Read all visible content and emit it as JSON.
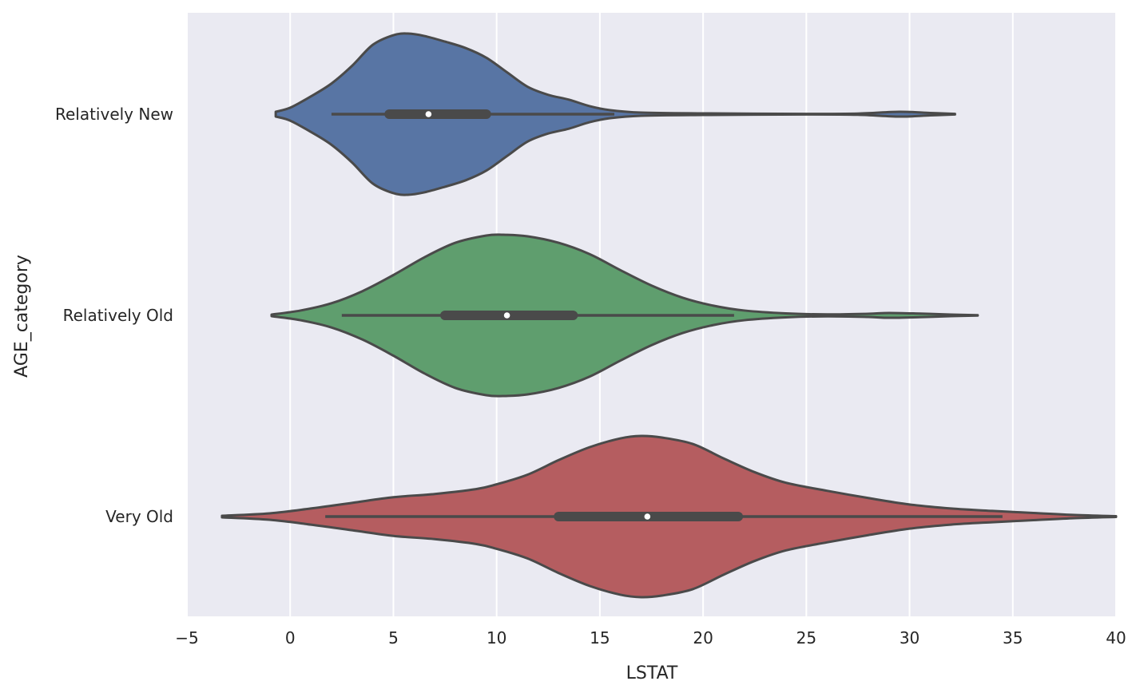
{
  "chart_data": {
    "type": "violin",
    "orientation": "horizontal",
    "xlabel": "LSTAT",
    "ylabel": "AGE_category",
    "xlim": [
      -5,
      40
    ],
    "xticks": [
      -5,
      0,
      5,
      10,
      15,
      20,
      25,
      30,
      35,
      40
    ],
    "xtick_labels": [
      "−5",
      "0",
      "5",
      "10",
      "15",
      "20",
      "25",
      "30",
      "35",
      "40"
    ],
    "grid": true,
    "background_color": "#eaeaf2",
    "grid_color": "#ffffff",
    "outline_color": "#4a4a4a",
    "categories": [
      "Relatively New",
      "Relatively Old",
      "Very Old"
    ],
    "series": [
      {
        "category": "Relatively New",
        "color": "#5875a4",
        "min": -0.7,
        "max": 32.2,
        "whisker_low": 2.0,
        "q1": 4.8,
        "median": 6.7,
        "q3": 9.5,
        "whisker_high": 15.7,
        "density": [
          [
            -0.7,
            0.03
          ],
          [
            0.0,
            0.08
          ],
          [
            1.0,
            0.22
          ],
          [
            2.0,
            0.38
          ],
          [
            3.0,
            0.6
          ],
          [
            4.0,
            0.86
          ],
          [
            5.0,
            0.98
          ],
          [
            5.7,
            1.0
          ],
          [
            6.5,
            0.97
          ],
          [
            7.5,
            0.9
          ],
          [
            8.5,
            0.82
          ],
          [
            9.5,
            0.7
          ],
          [
            10.5,
            0.52
          ],
          [
            11.5,
            0.34
          ],
          [
            12.5,
            0.24
          ],
          [
            13.5,
            0.18
          ],
          [
            14.5,
            0.1
          ],
          [
            15.5,
            0.05
          ],
          [
            17.0,
            0.02
          ],
          [
            20.0,
            0.01
          ],
          [
            25.0,
            0.004
          ],
          [
            27.5,
            0.008
          ],
          [
            29.5,
            0.03
          ],
          [
            31.0,
            0.015
          ],
          [
            32.2,
            0.004
          ]
        ]
      },
      {
        "category": "Relatively Old",
        "color": "#5f9e6e",
        "min": -0.9,
        "max": 33.3,
        "whisker_low": 2.5,
        "q1": 7.5,
        "median": 10.5,
        "q3": 13.7,
        "whisker_high": 21.5,
        "density": [
          [
            -0.9,
            0.01
          ],
          [
            0.5,
            0.06
          ],
          [
            2.0,
            0.15
          ],
          [
            3.5,
            0.3
          ],
          [
            5.0,
            0.5
          ],
          [
            6.5,
            0.72
          ],
          [
            8.0,
            0.9
          ],
          [
            9.5,
            0.99
          ],
          [
            10.3,
            1.0
          ],
          [
            11.5,
            0.98
          ],
          [
            13.0,
            0.9
          ],
          [
            14.5,
            0.76
          ],
          [
            16.0,
            0.56
          ],
          [
            17.5,
            0.37
          ],
          [
            19.0,
            0.22
          ],
          [
            20.5,
            0.12
          ],
          [
            22.0,
            0.06
          ],
          [
            24.0,
            0.025
          ],
          [
            26.0,
            0.012
          ],
          [
            28.0,
            0.02
          ],
          [
            29.0,
            0.03
          ],
          [
            30.5,
            0.022
          ],
          [
            32.0,
            0.01
          ],
          [
            33.3,
            0.003
          ]
        ]
      },
      {
        "category": "Very Old",
        "color": "#b55d60",
        "min": -3.3,
        "max": 40,
        "whisker_low": 1.7,
        "q1": 13.0,
        "median": 17.3,
        "q3": 21.7,
        "whisker_high": 34.5,
        "density": [
          [
            -3.3,
            0.01
          ],
          [
            -1.0,
            0.04
          ],
          [
            1.0,
            0.1
          ],
          [
            3.0,
            0.17
          ],
          [
            5.0,
            0.24
          ],
          [
            7.0,
            0.28
          ],
          [
            9.0,
            0.34
          ],
          [
            10.0,
            0.4
          ],
          [
            11.5,
            0.52
          ],
          [
            13.0,
            0.7
          ],
          [
            14.5,
            0.86
          ],
          [
            16.0,
            0.97
          ],
          [
            17.0,
            1.0
          ],
          [
            18.0,
            0.98
          ],
          [
            19.5,
            0.9
          ],
          [
            21.0,
            0.72
          ],
          [
            22.5,
            0.55
          ],
          [
            24.0,
            0.42
          ],
          [
            26.0,
            0.32
          ],
          [
            28.0,
            0.23
          ],
          [
            30.0,
            0.15
          ],
          [
            32.0,
            0.1
          ],
          [
            34.0,
            0.07
          ],
          [
            36.0,
            0.045
          ],
          [
            38.0,
            0.02
          ],
          [
            40.0,
            0.005
          ]
        ]
      }
    ]
  }
}
